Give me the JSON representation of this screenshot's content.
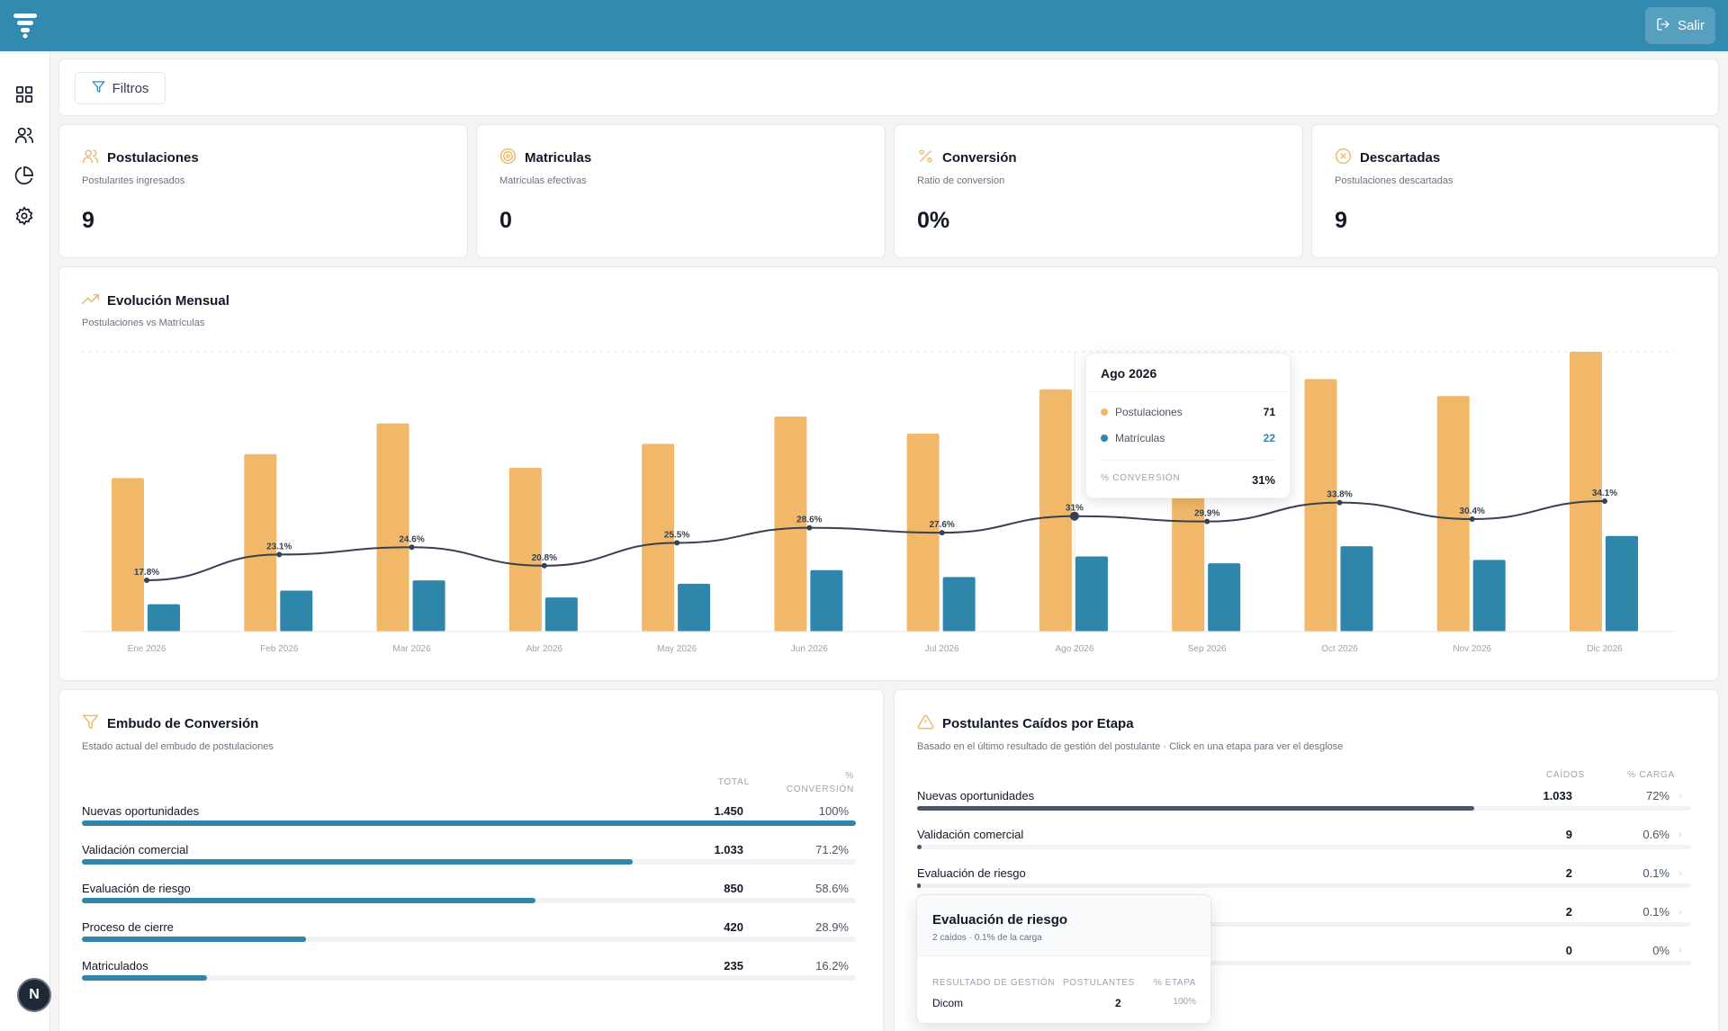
{
  "topbar": {
    "logout_label": "Salir"
  },
  "sidebar": {
    "items": [
      {
        "icon": "dashboard-grid-icon"
      },
      {
        "icon": "users-icon"
      },
      {
        "icon": "pie-chart-icon"
      },
      {
        "icon": "gear-icon"
      }
    ],
    "avatar_initial": "N"
  },
  "filters": {
    "label": "Filtros"
  },
  "stats": [
    {
      "title": "Postulaciones",
      "subtitle": "Postulantes ingresados",
      "value": "9",
      "icon": "users-icon"
    },
    {
      "title": "Matriculas",
      "subtitle": "Matriculas efectivas",
      "value": "0",
      "icon": "target-icon"
    },
    {
      "title": "Conversión",
      "subtitle": "Ratio de conversion",
      "value": "0%",
      "icon": "percent-icon"
    },
    {
      "title": "Descartadas",
      "subtitle": "Postulaciones descartadas",
      "value": "9",
      "icon": "x-circle-icon"
    }
  ],
  "monthly": {
    "title": "Evolución Mensual",
    "subtitle": "Postulaciones vs Matrículas"
  },
  "chart_data": {
    "type": "bar",
    "categories": [
      "Ene 2026",
      "Feb 2026",
      "Mar 2026",
      "Abr 2026",
      "May 2026",
      "Jun 2026",
      "Jul 2026",
      "Ago 2026",
      "Sep 2026",
      "Oct 2026",
      "Nov 2026",
      "Dic 2026"
    ],
    "series": [
      {
        "name": "Postulaciones",
        "values": [
          45,
          52,
          61,
          48,
          55,
          63,
          58,
          71,
          67,
          74,
          69,
          82
        ],
        "color": "#f0b868"
      },
      {
        "name": "Matrículas",
        "values": [
          8,
          12,
          15,
          10,
          14,
          18,
          16,
          22,
          20,
          25,
          21,
          28
        ],
        "color": "#2f86ab"
      }
    ],
    "conversion_line": {
      "values": [
        17.8,
        23.1,
        24.6,
        20.8,
        25.5,
        28.6,
        27.6,
        31,
        29.9,
        33.8,
        30.4,
        34.1
      ],
      "labels": [
        "17.8%",
        "23.1%",
        "24.6%",
        "20.8%",
        "25.5%",
        "28.6%",
        "27.6%",
        "31%",
        "29.9%",
        "33.8%",
        "30.4%",
        "34.1%"
      ],
      "color": "#374151"
    },
    "ylim": [
      0,
      82
    ],
    "grid": "top dashed line",
    "active_index": 7
  },
  "tooltip": {
    "title": "Ago 2026",
    "rows": [
      {
        "label": "Postulaciones",
        "value": "71",
        "color": "#f0b868"
      },
      {
        "label": "Matrículas",
        "value": "22",
        "color": "#2f86ab"
      }
    ],
    "conversion_label": "% CONVERSIÓN",
    "conversion_value": "31%"
  },
  "funnel": {
    "title": "Embudo de Conversión",
    "subtitle": "Estado actual del embudo de postulaciones",
    "col_total": "TOTAL",
    "col_conversion_1": "%",
    "col_conversion_2": "CONVERSIÓN",
    "rows": [
      {
        "label": "Nuevas oportunidades",
        "total": "1.450",
        "conversion": "100%",
        "pct": 100
      },
      {
        "label": "Validación comercial",
        "total": "1.033",
        "conversion": "71.2%",
        "pct": 71.2
      },
      {
        "label": "Evaluación de riesgo",
        "total": "850",
        "conversion": "58.6%",
        "pct": 58.6
      },
      {
        "label": "Proceso de cierre",
        "total": "420",
        "conversion": "28.9%",
        "pct": 28.9
      },
      {
        "label": "Matriculados",
        "total": "235",
        "conversion": "16.2%",
        "pct": 16.2
      }
    ]
  },
  "dropped": {
    "title": "Postulantes Caídos por Etapa",
    "subtitle": "Basado en el último resultado de gestión del postulante · Click en una etapa para ver el desglose",
    "col_count": "CAÍDOS",
    "col_load": "% CARGA",
    "rows": [
      {
        "label": "Nuevas oportunidades",
        "count": "1.033",
        "load": "72%",
        "pct": 72
      },
      {
        "label": "Validación comercial",
        "count": "9",
        "load": "0.6%",
        "pct": 0.6
      },
      {
        "label": "Evaluación de riesgo",
        "count": "2",
        "load": "0.1%",
        "pct": 0.1
      },
      {
        "label": "",
        "count": "2",
        "load": "0.1%",
        "pct": 0.1
      },
      {
        "label": "",
        "count": "0",
        "load": "0%",
        "pct": 0
      }
    ],
    "chevron": "›"
  },
  "popup": {
    "title": "Evaluación de riesgo",
    "subtitle": "2 caídos · 0.1% de la carga",
    "col_result": "RESULTADO DE GESTIÓN",
    "col_applicants": "POSTULANTES",
    "col_stage": "% ETAPA",
    "row": {
      "result": "Dicom",
      "applicants": "2",
      "stage": "100%"
    }
  }
}
